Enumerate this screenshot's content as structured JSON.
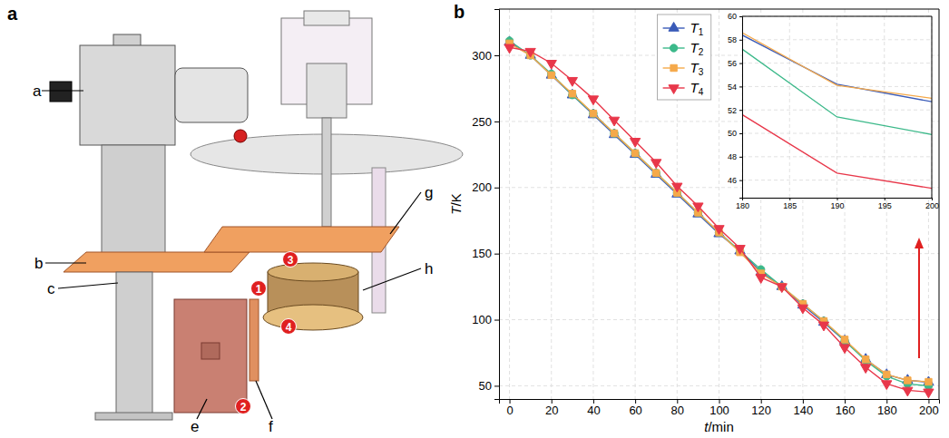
{
  "panel_labels": [
    "a",
    "b"
  ],
  "diagram": {
    "part_labels": [
      "a",
      "b",
      "c",
      "e",
      "f",
      "g",
      "h"
    ],
    "sensor_labels": [
      "1",
      "2",
      "3",
      "4"
    ]
  },
  "chart_data": [
    {
      "type": "line",
      "x_label": "t/min",
      "y_label": "T/K",
      "x": [
        0,
        10,
        20,
        30,
        40,
        50,
        60,
        70,
        80,
        90,
        100,
        110,
        120,
        130,
        140,
        150,
        160,
        170,
        180,
        190,
        200
      ],
      "series": [
        {
          "name": "T1",
          "color": "#3a5bb8",
          "marker": "triangle-up",
          "values": [
            310,
            300,
            285,
            270,
            255,
            240,
            225,
            210,
            195,
            180,
            165,
            152,
            136,
            125,
            111,
            98,
            84,
            70,
            58.4,
            54.2,
            52.7
          ]
        },
        {
          "name": "T2",
          "color": "#3cb98a",
          "marker": "circle",
          "values": [
            311,
            300,
            286,
            270,
            256,
            241,
            226,
            211,
            196,
            181,
            166,
            152,
            138,
            125,
            112,
            99,
            84,
            69,
            57.2,
            51.4,
            49.9
          ]
        },
        {
          "name": "T3",
          "color": "#f5a94a",
          "marker": "square",
          "values": [
            309,
            300,
            285,
            271,
            256,
            241,
            226,
            211,
            196,
            181,
            166,
            151,
            135,
            125,
            112,
            99,
            85,
            70,
            58.6,
            54.1,
            53.0
          ]
        },
        {
          "name": "T4",
          "color": "#e8374a",
          "marker": "triangle-down",
          "values": [
            306,
            303,
            294,
            281,
            267,
            251,
            235,
            219,
            201,
            186,
            169,
            154,
            132,
            125,
            109,
            96,
            79,
            64,
            51.6,
            46.6,
            45.3
          ]
        }
      ],
      "xlim": [
        -5,
        205
      ],
      "ylim": [
        40,
        335
      ],
      "xticks": [
        0,
        20,
        40,
        60,
        80,
        100,
        120,
        140,
        160,
        180,
        200
      ],
      "yticks": [
        50,
        100,
        150,
        200,
        250,
        300
      ],
      "grid": true,
      "legend": "top"
    },
    {
      "type": "line",
      "x": [
        180,
        190,
        200
      ],
      "series": [
        {
          "color": "#3a5bb8",
          "marker": "none",
          "values": [
            58.4,
            54.2,
            52.7
          ]
        },
        {
          "color": "#3cb98a",
          "marker": "none",
          "values": [
            57.2,
            51.4,
            49.9
          ]
        },
        {
          "color": "#f5a94a",
          "marker": "none",
          "values": [
            58.6,
            54.1,
            53.0
          ]
        },
        {
          "color": "#e8374a",
          "marker": "none",
          "values": [
            51.6,
            46.6,
            45.3
          ]
        }
      ],
      "xlim": [
        180,
        200
      ],
      "ylim": [
        44.5,
        60
      ],
      "xticks": [
        180,
        185,
        190,
        195,
        200
      ],
      "yticks": [
        46,
        48,
        50,
        52,
        54,
        56,
        58,
        60
      ],
      "grid": true
    }
  ]
}
